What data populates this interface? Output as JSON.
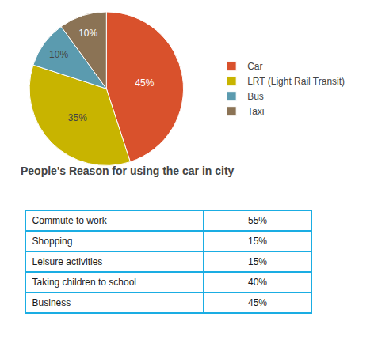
{
  "chart_data": [
    {
      "type": "pie",
      "categories": [
        "Car",
        "LRT (Light Rail Transit)",
        "Bus",
        "Taxi"
      ],
      "values": [
        45,
        35,
        10,
        10
      ],
      "value_labels": [
        "45%",
        "35%",
        "10%",
        "10%"
      ],
      "colors": [
        "#d9512c",
        "#c8b400",
        "#5b9baf",
        "#8b7355"
      ],
      "data_labels": true,
      "legend": "right"
    },
    {
      "type": "table",
      "title": "People's Reason for using the car in city",
      "categories": [
        "Commute to work",
        "Shopping",
        "Leisure activities",
        "Taking children to school",
        "Business"
      ],
      "values": [
        55,
        15,
        15,
        40,
        45
      ],
      "value_labels": [
        "55%",
        "15%",
        "15%",
        "40%",
        "45%"
      ],
      "color": "#1aade3"
    }
  ]
}
